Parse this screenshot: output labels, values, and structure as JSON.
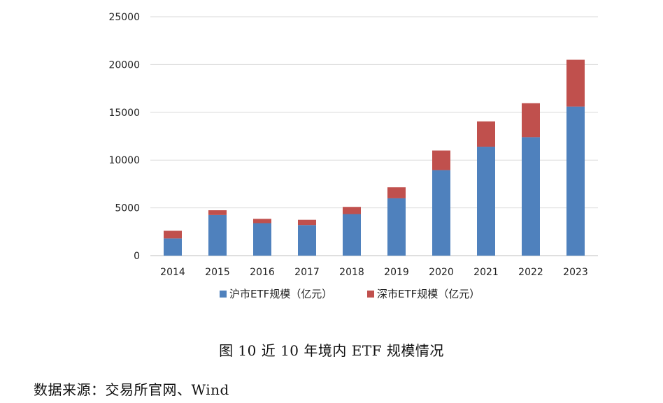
{
  "chart_data": {
    "type": "bar",
    "stacked": true,
    "categories": [
      "2014",
      "2015",
      "2016",
      "2017",
      "2018",
      "2019",
      "2020",
      "2021",
      "2022",
      "2023"
    ],
    "series": [
      {
        "name": "沪市ETF规模（亿元）",
        "color": "#4f81bd",
        "values": [
          1800,
          4250,
          3400,
          3200,
          4350,
          6000,
          8950,
          11400,
          12400,
          15600
        ]
      },
      {
        "name": "深市ETF规模（亿元）",
        "color": "#c0504d",
        "values": [
          800,
          500,
          450,
          550,
          750,
          1150,
          2050,
          2650,
          3550,
          4900
        ]
      }
    ],
    "ylim": [
      0,
      25000
    ],
    "yticks": [
      0,
      5000,
      10000,
      15000,
      20000,
      25000
    ],
    "ytick_labels": [
      "0",
      "5000",
      "10000",
      "15000",
      "20000",
      "25000"
    ],
    "grid": true,
    "legend_position": "bottom"
  },
  "caption": "图 10  近 10 年境内 ETF 规模情况",
  "source": "数据来源：交易所官网、Wind"
}
